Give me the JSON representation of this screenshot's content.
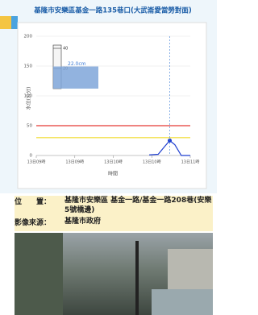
{
  "header": {
    "title": "基隆市安樂區基金一路135巷口(大武崙愛當勞對面)"
  },
  "chart_data": {
    "type": "line",
    "ylabel": "水位(公分)",
    "xlabel": "時間",
    "x": [
      88,
      95,
      100,
      104,
      108,
      113,
      120
    ],
    "series": [
      {
        "color": "#1f3fd0",
        "values": [
          1,
          2,
          15,
          25,
          18,
          0,
          0
        ]
      }
    ],
    "marker_index": 3,
    "xlim": [
      0,
      120
    ],
    "xticks": [
      {
        "value": 0,
        "label": "13日09時"
      },
      {
        "value": 30,
        "label": "13日09時"
      },
      {
        "value": 60,
        "label": "13日10時"
      },
      {
        "value": 90,
        "label": "13日10時"
      },
      {
        "value": 120,
        "label": "13日11時"
      }
    ],
    "ylim": [
      0,
      200
    ],
    "yticks": [
      0,
      50,
      100,
      150,
      200
    ],
    "grid": true,
    "thresholds": [
      {
        "value": 50,
        "color": "#e53935"
      },
      {
        "value": 30,
        "color": "#f2e04a"
      }
    ],
    "gauge": {
      "ticks": [
        40,
        20
      ],
      "value": 22,
      "value_label": "22.0cm"
    }
  },
  "info": {
    "location_label": "位　　置：",
    "location": "基隆市安樂區 基金一路/基金一路208巷(安樂5號橋邊)",
    "source_label": "影像來源：",
    "source": "基隆市政府"
  }
}
